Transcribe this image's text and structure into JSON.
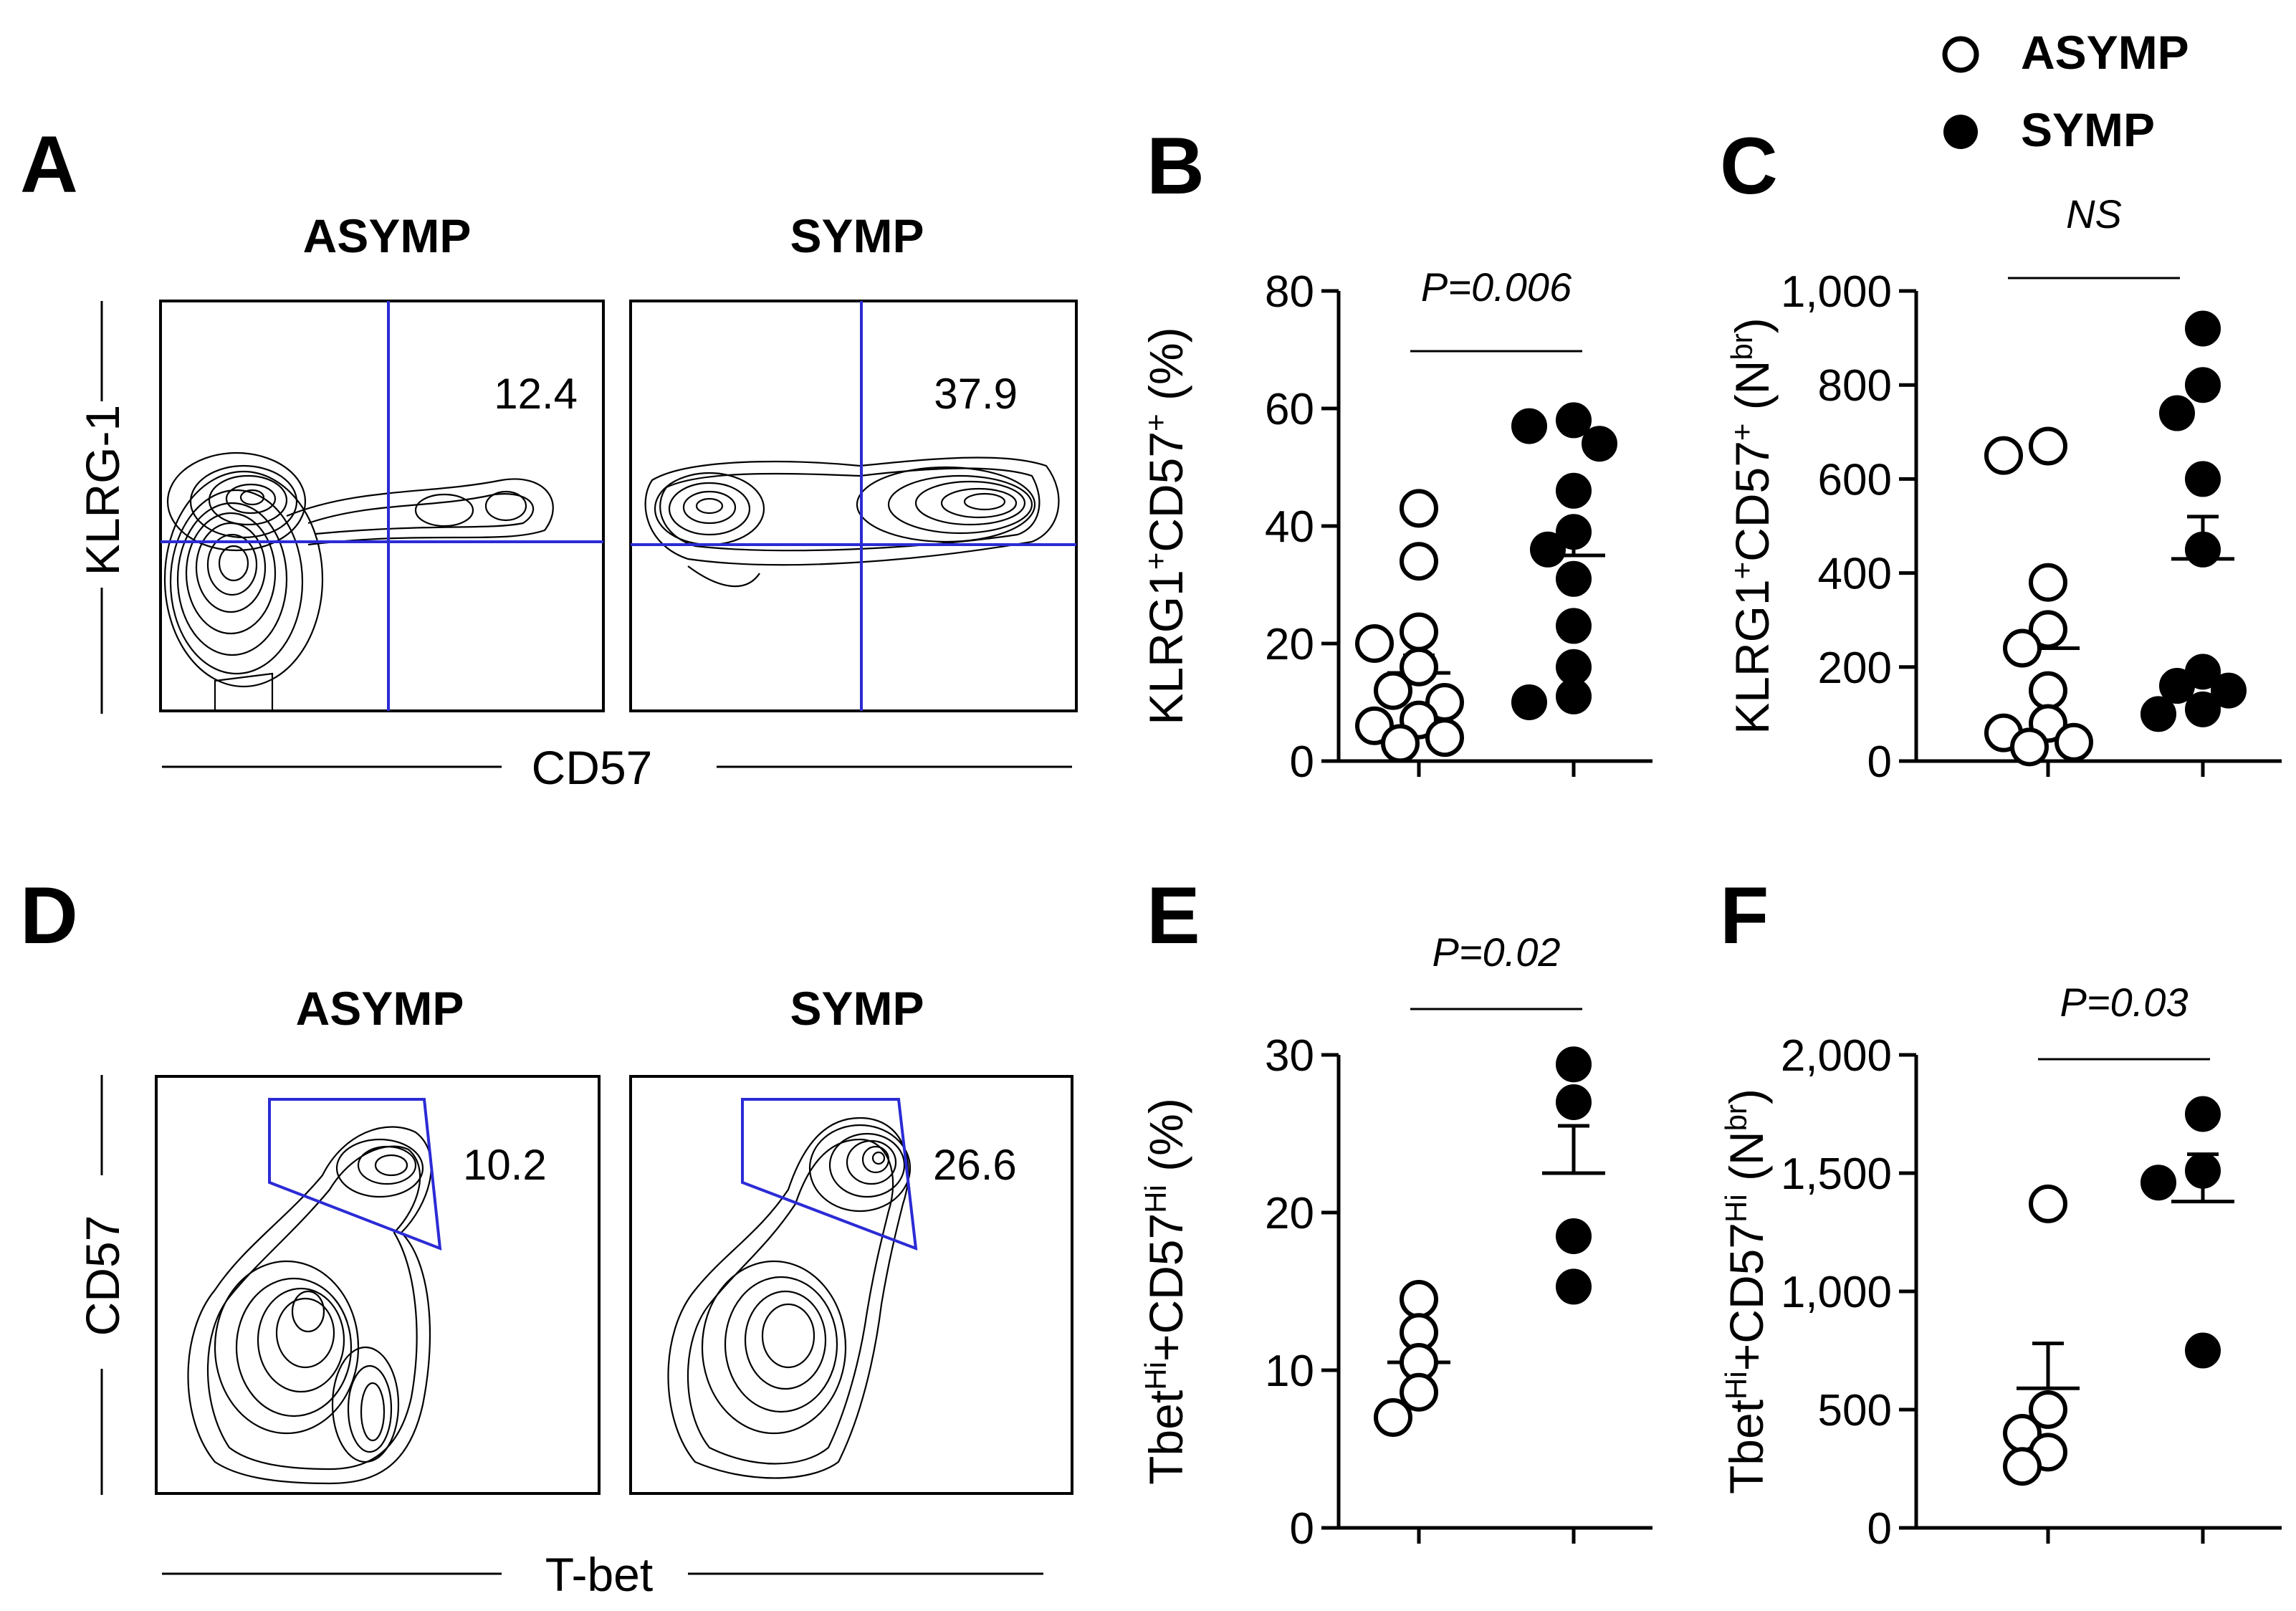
{
  "legend": {
    "entries": [
      {
        "label": "ASYMP",
        "marker": "open-circle"
      },
      {
        "label": "SYMP",
        "marker": "filled-circle"
      }
    ]
  },
  "flow_panels": [
    {
      "panel_label": "A",
      "group_labels": [
        "ASYMP",
        "SYMP"
      ],
      "x_label": "CD57",
      "y_label": "KLRG-1",
      "quadrant_values": [
        "12.4",
        "37.9"
      ],
      "gate_color": "#2b2bd6"
    },
    {
      "panel_label": "D",
      "group_labels": [
        "ASYMP",
        "SYMP"
      ],
      "x_label": "T-bet",
      "y_label": "CD57",
      "quadrant_values": [
        "10.2",
        "26.6"
      ],
      "gate_color": "#2b2bd6"
    }
  ],
  "chart_data": [
    {
      "panel_label": "B",
      "type": "scatter",
      "y_label_parts": {
        "pre": "KLRG1",
        "sup1": "+",
        "mid": "CD57",
        "sup2": "+",
        "post": " (%)"
      },
      "ylim": [
        0,
        80
      ],
      "yticks": [
        "0",
        "20",
        "40",
        "60",
        "80"
      ],
      "p_value": "P=0.006",
      "groups": [
        {
          "legend": "ASYMP",
          "marker": "open",
          "mean": 15,
          "sem": 3,
          "values": [
            43,
            34,
            22,
            20,
            16,
            12,
            10,
            7,
            6,
            4,
            3
          ]
        },
        {
          "legend": "SYMP",
          "marker": "filled",
          "mean": 35,
          "sem": 5,
          "values": [
            58,
            57,
            54,
            46,
            39,
            36,
            31,
            23,
            16,
            11,
            10
          ]
        }
      ]
    },
    {
      "panel_label": "C",
      "type": "scatter",
      "y_label_parts": {
        "pre": "KLRG1",
        "sup1": "+",
        "mid": "CD57",
        "sup2": "+",
        "post": " (N",
        "sup3": "br",
        "end": ")"
      },
      "ylim": [
        0,
        1000
      ],
      "yticks": [
        "0",
        "200",
        "400",
        "600",
        "800",
        "1,000"
      ],
      "p_value": "NS",
      "groups": [
        {
          "legend": "ASYMP",
          "marker": "open",
          "mean": 240,
          "sem": 60,
          "values": [
            670,
            650,
            380,
            280,
            240,
            150,
            80,
            60,
            40,
            30
          ]
        },
        {
          "legend": "SYMP",
          "marker": "filled",
          "mean": 430,
          "sem": 90,
          "values": [
            920,
            800,
            740,
            600,
            450,
            190,
            160,
            150,
            110,
            100
          ]
        }
      ]
    },
    {
      "panel_label": "E",
      "type": "scatter",
      "y_label_parts": {
        "pre": "Tbet",
        "sup1": "Hi",
        "mid": "+CD57",
        "sup2": "Hi",
        "post": " (%)"
      },
      "ylim": [
        0,
        30
      ],
      "yticks": [
        "0",
        "10",
        "20",
        "30"
      ],
      "p_value": "P=0.02",
      "groups": [
        {
          "legend": "ASYMP",
          "marker": "open",
          "mean": 10.5,
          "sem": 1.3,
          "values": [
            14.5,
            12.4,
            10.5,
            8.6,
            7
          ]
        },
        {
          "legend": "SYMP",
          "marker": "filled",
          "mean": 22.5,
          "sem": 3,
          "values": [
            29.4,
            27,
            18.5,
            15.3
          ]
        }
      ]
    },
    {
      "panel_label": "F",
      "type": "scatter",
      "y_label_parts": {
        "pre": "Tbet",
        "sup1": "Hi",
        "mid": "+CD57",
        "sup2": "Hi",
        "post": " (N",
        "sup3": "br",
        "end": ")"
      },
      "ylim": [
        0,
        2000
      ],
      "yticks": [
        "0",
        "500",
        "1,000",
        "1,500",
        "2,000"
      ],
      "p_value": "P=0.03",
      "groups": [
        {
          "legend": "ASYMP",
          "marker": "open",
          "mean": 590,
          "sem": 190,
          "values": [
            1370,
            500,
            400,
            320,
            260
          ]
        },
        {
          "legend": "SYMP",
          "marker": "filled",
          "mean": 1380,
          "sem": 200,
          "values": [
            1750,
            1510,
            1460,
            750
          ]
        }
      ]
    }
  ]
}
